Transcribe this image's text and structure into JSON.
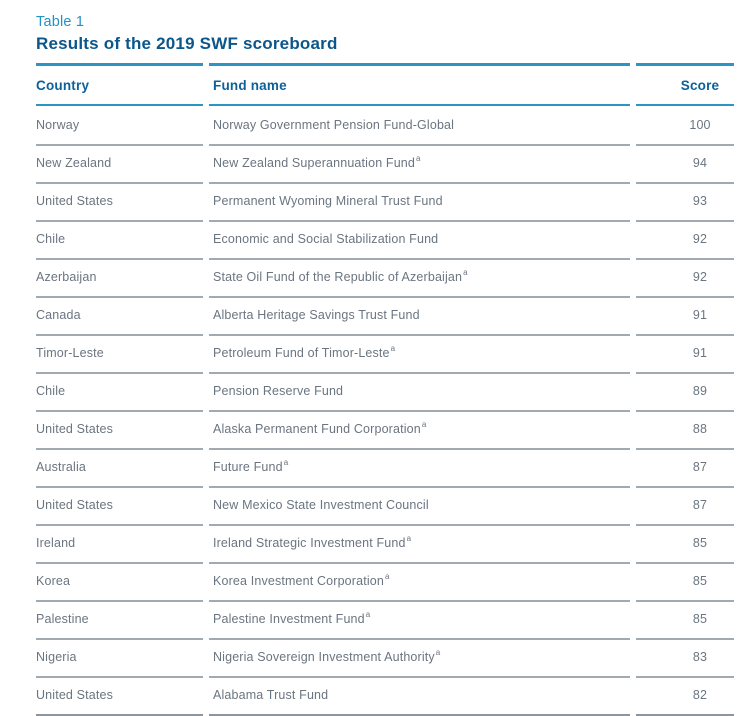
{
  "header": {
    "table_label": "Table 1",
    "title": "Results of the 2019 SWF scoreboard"
  },
  "table": {
    "columns": [
      "Country",
      "Fund name",
      "Score"
    ],
    "footnote_symbol": "a",
    "rows": [
      {
        "country": "Norway",
        "fund": "Norway Government Pension Fund-Global",
        "footnote": "",
        "score": "100"
      },
      {
        "country": "New Zealand",
        "fund": "New Zealand Superannuation Fund",
        "footnote": "a",
        "score": "94"
      },
      {
        "country": "United States",
        "fund": "Permanent Wyoming Mineral Trust Fund",
        "footnote": "",
        "score": "93"
      },
      {
        "country": "Chile",
        "fund": "Economic and Social Stabilization Fund",
        "footnote": "",
        "score": "92"
      },
      {
        "country": "Azerbaijan",
        "fund": "State Oil Fund of the Republic of Azerbaijan",
        "footnote": "a",
        "score": "92"
      },
      {
        "country": "Canada",
        "fund": "Alberta Heritage Savings Trust Fund",
        "footnote": "",
        "score": "91"
      },
      {
        "country": "Timor-Leste",
        "fund": "Petroleum Fund of Timor-Leste",
        "footnote": "a",
        "score": "91"
      },
      {
        "country": "Chile",
        "fund": "Pension Reserve Fund",
        "footnote": "",
        "score": "89"
      },
      {
        "country": "United States",
        "fund": "Alaska Permanent Fund Corporation",
        "footnote": "a",
        "score": "88"
      },
      {
        "country": "Australia",
        "fund": "Future Fund",
        "footnote": "a",
        "score": "87"
      },
      {
        "country": "United States",
        "fund": "New Mexico State Investment Council",
        "footnote": "",
        "score": "87"
      },
      {
        "country": "Ireland",
        "fund": "Ireland Strategic Investment Fund",
        "footnote": "a",
        "score": "85"
      },
      {
        "country": "Korea",
        "fund": "Korea Investment Corporation",
        "footnote": "a",
        "score": "85"
      },
      {
        "country": "Palestine",
        "fund": "Palestine Investment Fund",
        "footnote": "a",
        "score": "85"
      },
      {
        "country": "Nigeria",
        "fund": "Nigeria Sovereign Investment Authority",
        "footnote": "a",
        "score": "83"
      },
      {
        "country": "United States",
        "fund": "Alabama Trust Fund",
        "footnote": "",
        "score": "82"
      }
    ]
  },
  "colors": {
    "table_label_blue": "#2292c7",
    "title_navy": "#0b568a",
    "column_header_navy": "#0d609a",
    "rule_blue": "#2e94c5",
    "body_text_gray": "#6b7580",
    "row_separator_gray": "#a2aab1",
    "bottom_rule_gray": "#8d969d",
    "background": "#ffffff"
  }
}
